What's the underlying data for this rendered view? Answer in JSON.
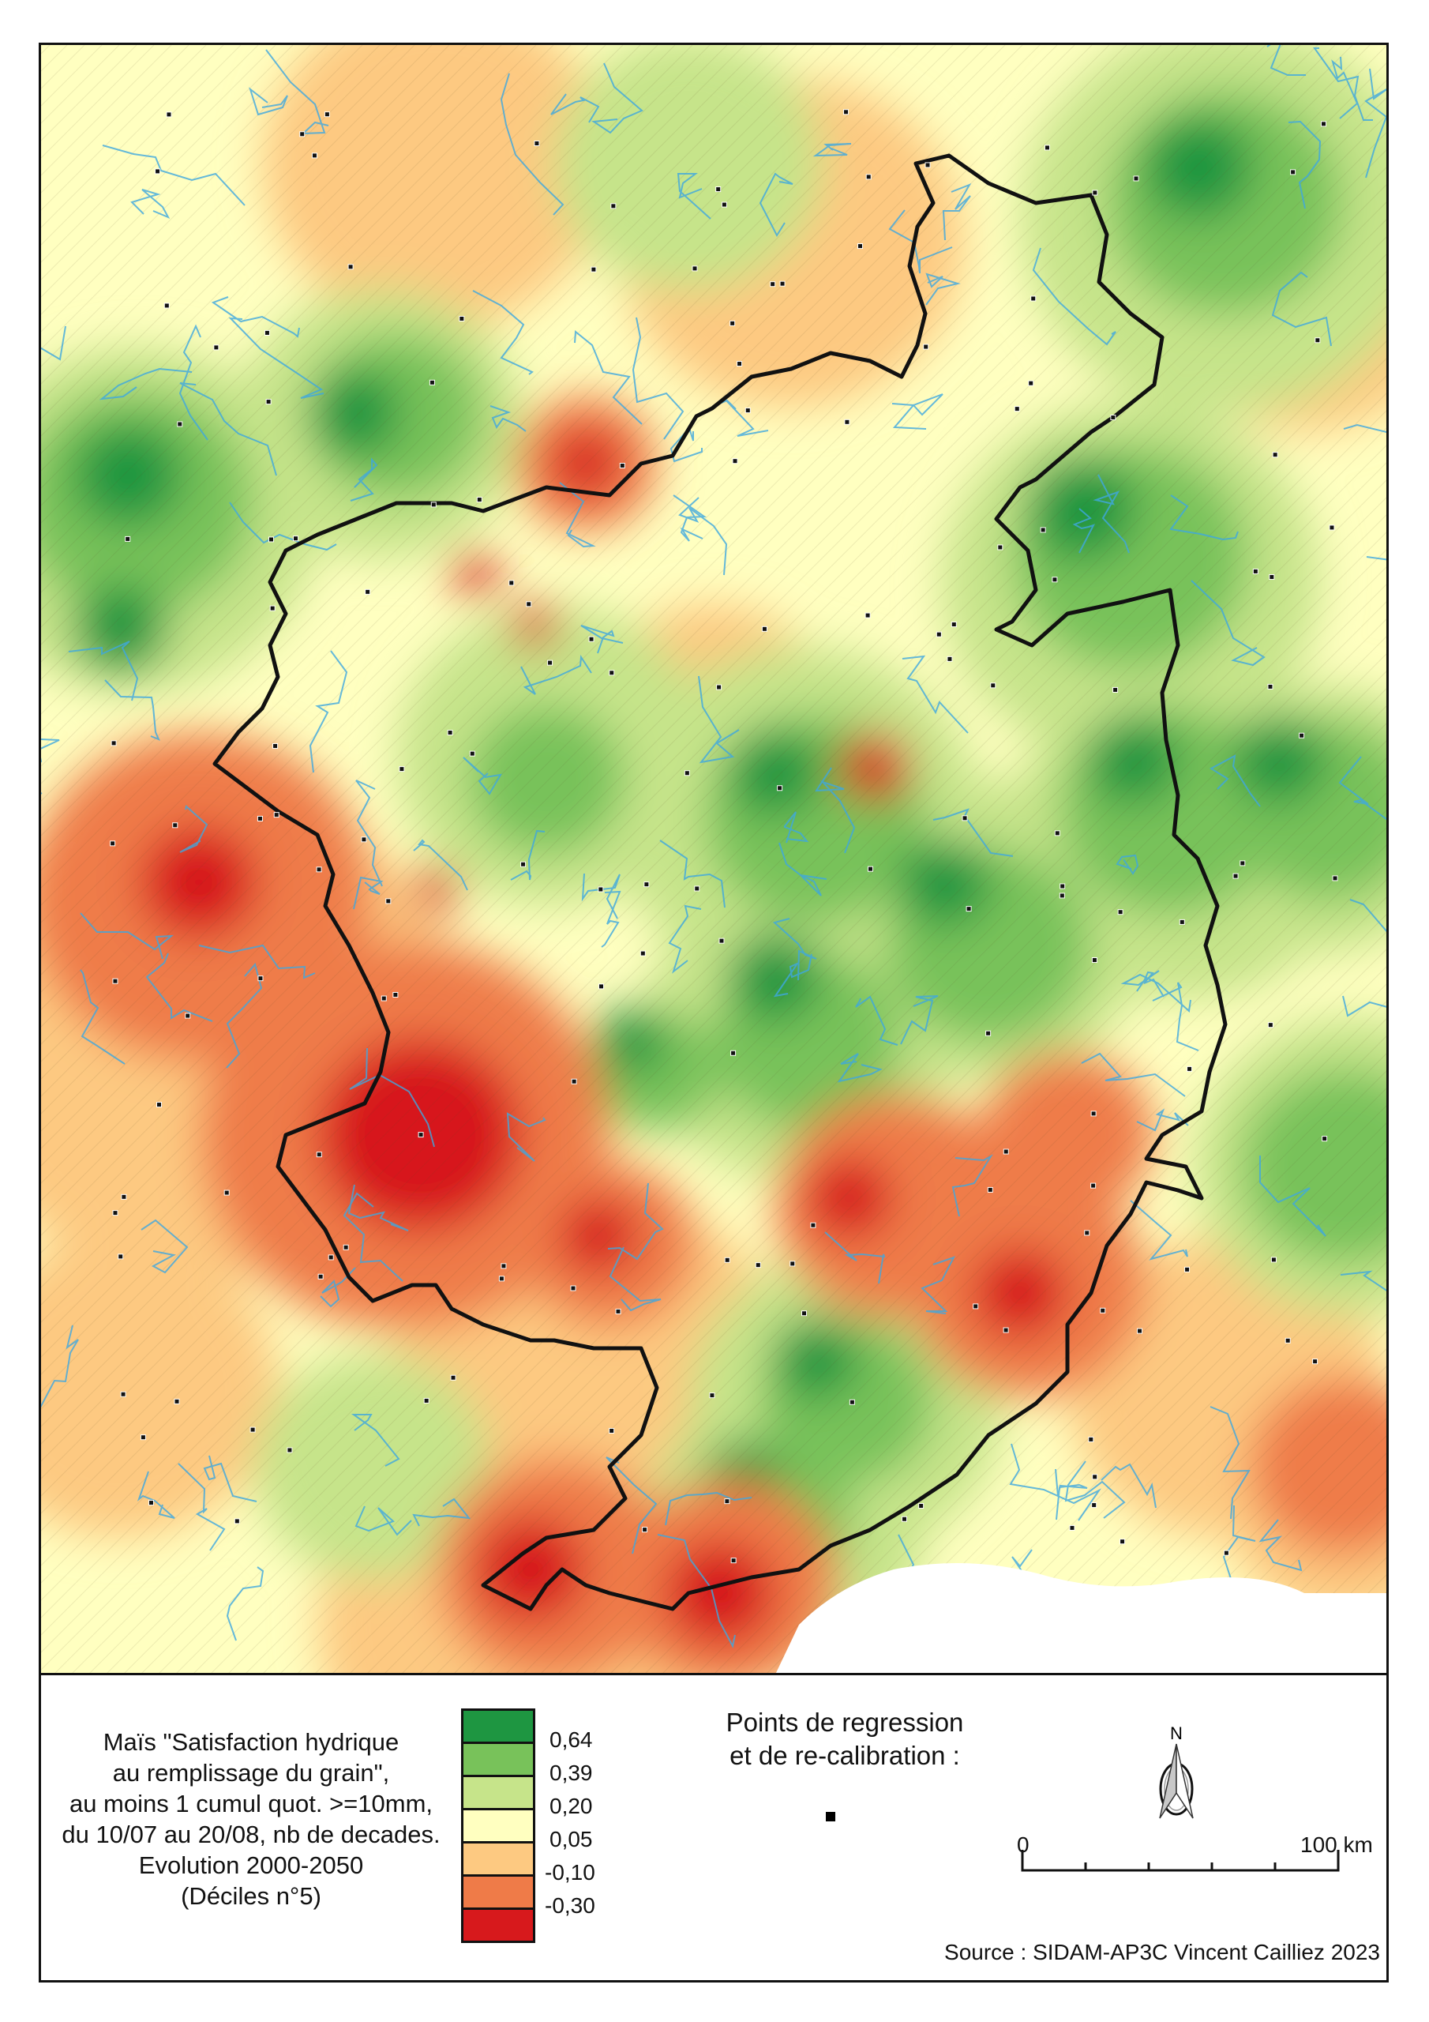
{
  "legend": {
    "title_lines": [
      "Maïs \"Satisfaction hydrique",
      "au remplissage du grain\",",
      "au moins 1 cumul quot. >=10mm,",
      "du 10/07 au 20/08, nb de decades.",
      "Evolution 2000-2050",
      "(Déciles n°5)"
    ],
    "classes": [
      {
        "color": "#1e9641"
      },
      {
        "color": "#78c25a"
      },
      {
        "color": "#c6e48a"
      },
      {
        "color": "#ffffc0"
      },
      {
        "color": "#fdc981"
      },
      {
        "color": "#ef7b48"
      },
      {
        "color": "#d7191c"
      }
    ],
    "breaks": [
      "0,64",
      "0,39",
      "0,20",
      "0,05",
      "-0,10",
      "-0,30"
    ]
  },
  "points": {
    "label_lines": [
      "Points de regression",
      "et de re-calibration :"
    ],
    "symbol": "black-square"
  },
  "north_arrow": {
    "label": "N"
  },
  "scale_bar": {
    "start": "0",
    "end": "100 km",
    "divisions": 5
  },
  "source": "Source : SIDAM-AP3C Vincent Cailliez 2023",
  "map": {
    "background_color": "#ffffc0",
    "river_color": "#3ea8e0",
    "sea_color": "#ffffff",
    "border_color": "#111111"
  }
}
